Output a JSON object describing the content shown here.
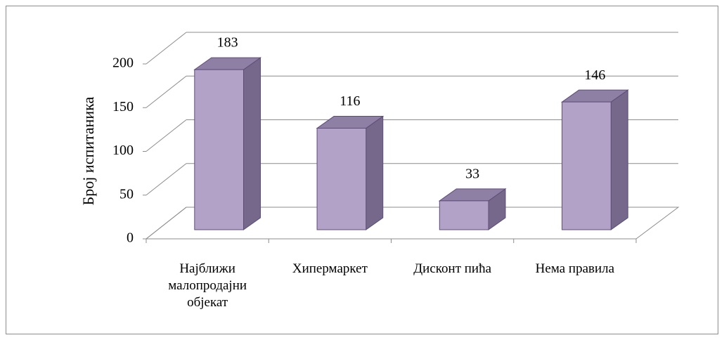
{
  "chart_data": {
    "type": "bar3d",
    "y_label": "Број испитаника",
    "categories": [
      "Најближи малопродајни објекат",
      "Хипермаркет",
      "Дисконт пића",
      "Нема правила"
    ],
    "values": [
      183,
      116,
      33,
      146
    ],
    "color": "#b3a2c7",
    "ylim": [
      0,
      200
    ],
    "yticks": [
      0,
      50,
      100,
      150,
      200
    ],
    "grid": true
  }
}
